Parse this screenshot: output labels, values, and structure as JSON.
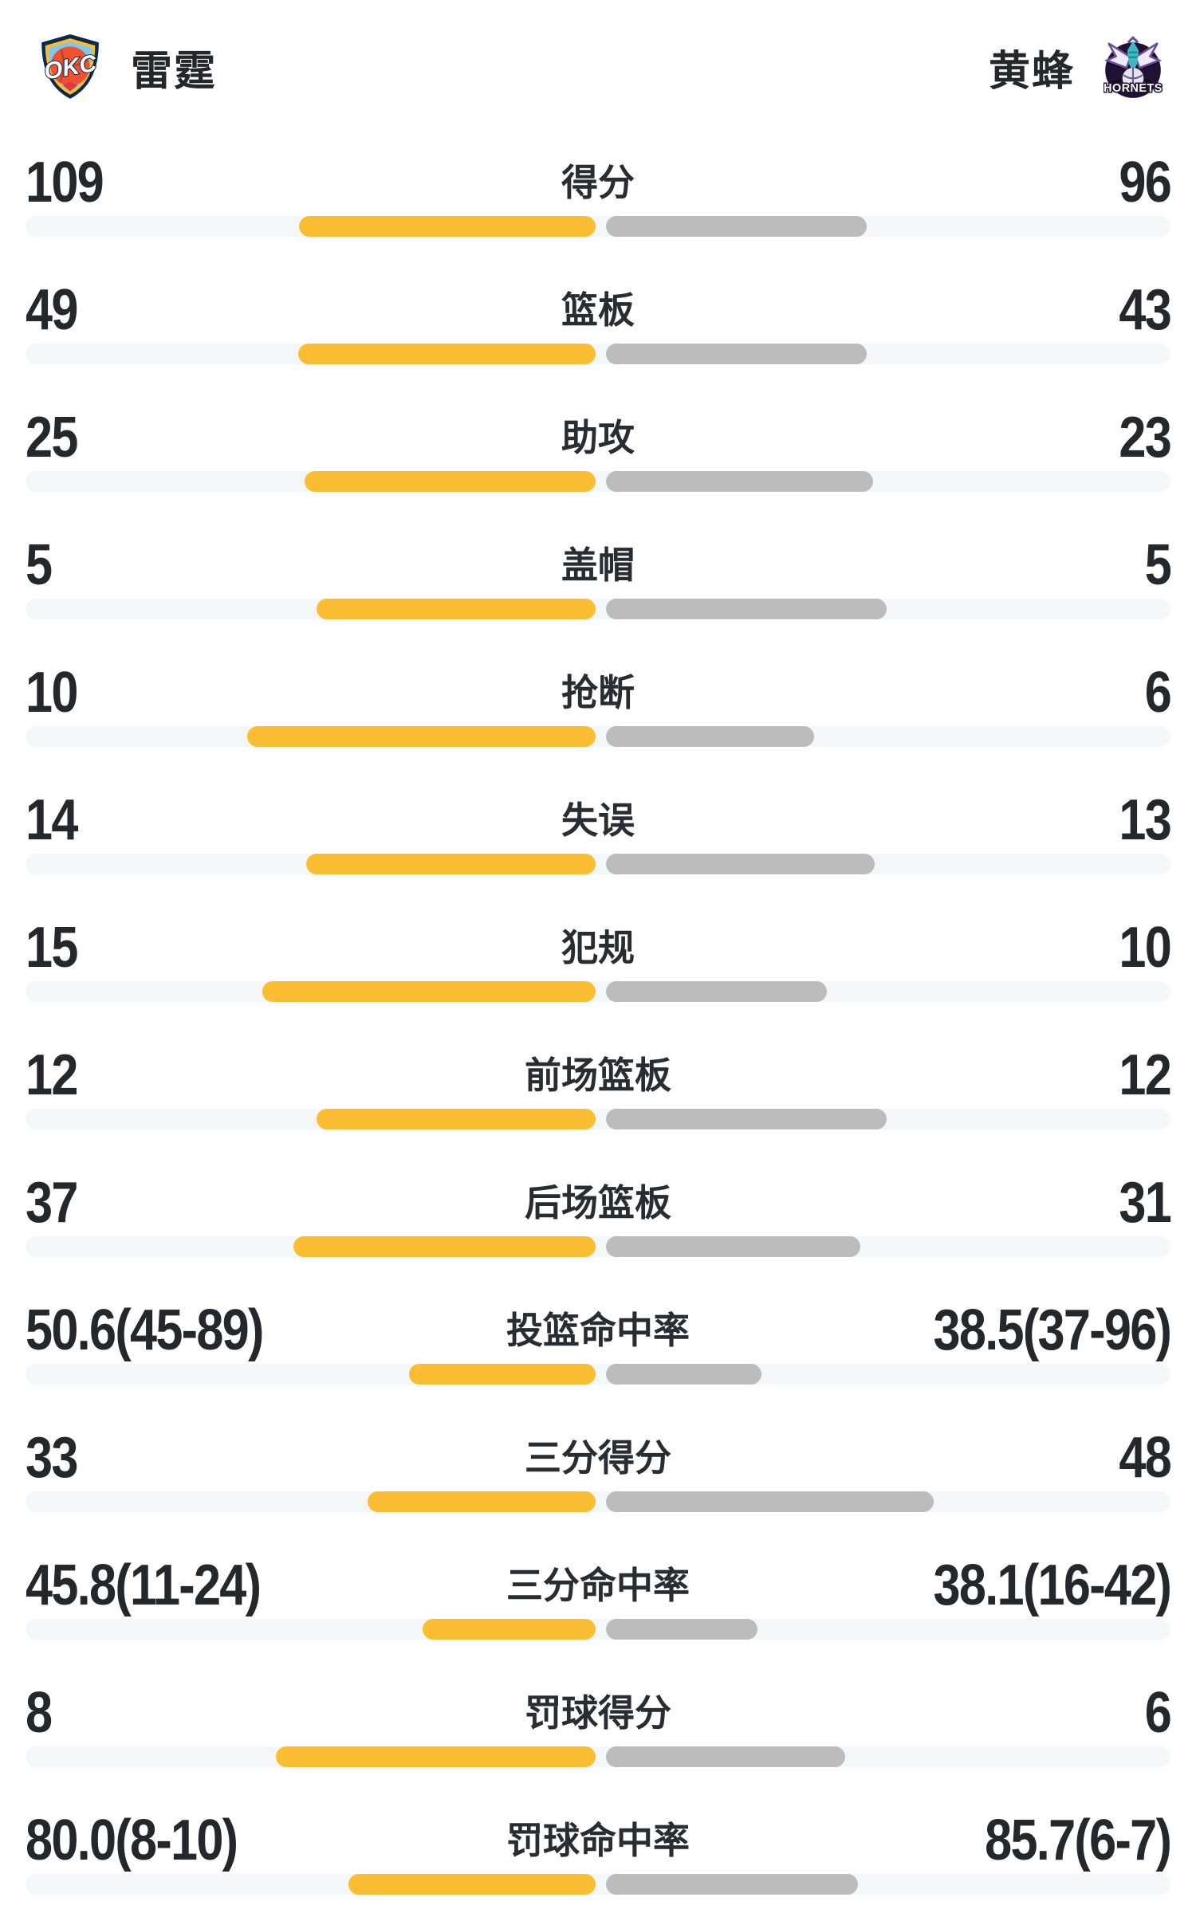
{
  "header": {
    "left_team": {
      "name": "雷霆",
      "logo": "okc-logo",
      "abbr": "OKC"
    },
    "right_team": {
      "name": "黄蜂",
      "logo": "hornets-logo",
      "abbr": "HORNETS"
    }
  },
  "colors": {
    "home_bar": "#fbbe33",
    "away_bar": "#bcbcbc",
    "bar_track": "#f5f6f8",
    "text_primary": "#26262d",
    "background": "#ffffff",
    "okc_navy": "#0a2a4f",
    "okc_orange": "#ef5133",
    "okc_blue": "#7fc9ee",
    "okc_yellow": "#fdbb30",
    "hornets_purple": "#201233",
    "hornets_teal": "#00848f"
  },
  "chart_data": {
    "type": "bar",
    "layout": "paired horizontal comparison bars, home bar grows left from center, away bar grows right from center",
    "teams": [
      {
        "name": "雷霆",
        "side": "left",
        "bar_color": "#fbbe33"
      },
      {
        "name": "黄蜂",
        "side": "right",
        "bar_color": "#bcbcbc"
      }
    ],
    "rows": [
      {
        "label": "得分",
        "left": "109",
        "right": "96",
        "left_value": 109,
        "right_value": 96,
        "bars": {
          "left": 0.259,
          "right": 0.228
        }
      },
      {
        "label": "篮板",
        "left": "49",
        "right": "43",
        "left_value": 49,
        "right_value": 43,
        "bars": {
          "left": 0.26,
          "right": 0.228
        }
      },
      {
        "label": "助攻",
        "left": "25",
        "right": "23",
        "left_value": 25,
        "right_value": 23,
        "bars": {
          "left": 0.254,
          "right": 0.233
        }
      },
      {
        "label": "盖帽",
        "left": "5",
        "right": "5",
        "left_value": 5,
        "right_value": 5,
        "bars": {
          "left": 0.244,
          "right": 0.245
        }
      },
      {
        "label": "抢断",
        "left": "10",
        "right": "6",
        "left_value": 10,
        "right_value": 6,
        "bars": {
          "left": 0.304,
          "right": 0.182
        }
      },
      {
        "label": "失误",
        "left": "14",
        "right": "13",
        "left_value": 14,
        "right_value": 13,
        "bars": {
          "left": 0.253,
          "right": 0.235
        }
      },
      {
        "label": "犯规",
        "left": "15",
        "right": "10",
        "left_value": 15,
        "right_value": 10,
        "bars": {
          "left": 0.291,
          "right": 0.193
        }
      },
      {
        "label": "前场篮板",
        "left": "12",
        "right": "12",
        "left_value": 12,
        "right_value": 12,
        "bars": {
          "left": 0.244,
          "right": 0.245
        }
      },
      {
        "label": "后场篮板",
        "left": "37",
        "right": "31",
        "left_value": 37,
        "right_value": 31,
        "bars": {
          "left": 0.264,
          "right": 0.222
        }
      },
      {
        "label": "投篮命中率",
        "left": "50.6(45-89)",
        "right": "38.5(37-96)",
        "left_value": 50.6,
        "right_value": 38.5,
        "left_made": 45,
        "left_att": 89,
        "right_made": 37,
        "right_att": 96,
        "bars": {
          "left": 0.163,
          "right": 0.136
        }
      },
      {
        "label": "三分得分",
        "left": "33",
        "right": "48",
        "left_value": 33,
        "right_value": 48,
        "bars": {
          "left": 0.199,
          "right": 0.286
        }
      },
      {
        "label": "三分命中率",
        "left": "45.8(11-24)",
        "right": "38.1(16-42)",
        "left_value": 45.8,
        "right_value": 38.1,
        "left_made": 11,
        "left_att": 24,
        "right_made": 16,
        "right_att": 42,
        "bars": {
          "left": 0.151,
          "right": 0.132
        }
      },
      {
        "label": "罚球得分",
        "left": "8",
        "right": "6",
        "left_value": 8,
        "right_value": 6,
        "bars": {
          "left": 0.279,
          "right": 0.209
        }
      },
      {
        "label": "罚球命中率",
        "left": "80.0(8-10)",
        "right": "85.7(6-7)",
        "left_value": 80.0,
        "right_value": 85.7,
        "left_made": 8,
        "left_att": 10,
        "right_made": 6,
        "right_att": 7,
        "bars": {
          "left": 0.216,
          "right": 0.22
        }
      }
    ]
  }
}
